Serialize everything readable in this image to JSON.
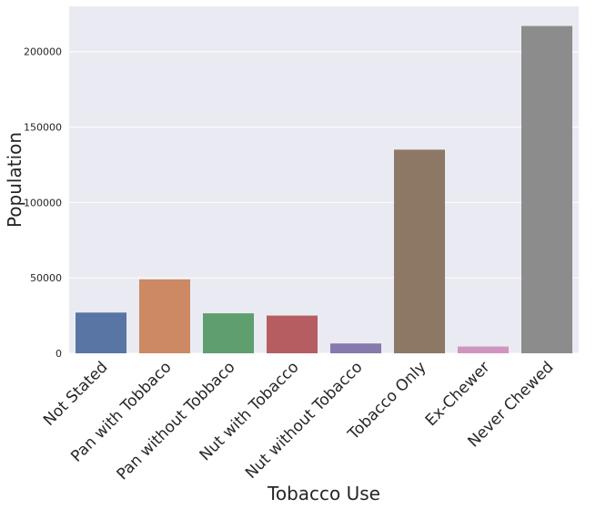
{
  "chart_data": {
    "type": "bar",
    "title": "",
    "xlabel": "Tobacco Use",
    "ylabel": "Population",
    "categories": [
      "Not Stated",
      "Pan with Tobbaco",
      "Pan without Tobbaco",
      "Nut with Tobacco",
      "Nut without Tobacco",
      "Tobacco Only",
      "Ex-Chewer",
      "Never Chewed"
    ],
    "values": [
      27000,
      49000,
      26500,
      25000,
      6500,
      135000,
      4500,
      217000
    ],
    "colors": [
      "#5875a4",
      "#cc8963",
      "#5f9e6e",
      "#b55d60",
      "#857aab",
      "#8d7866",
      "#d095bf",
      "#8c8c8c"
    ],
    "ylim": [
      0,
      230000
    ],
    "yticks": [
      0,
      50000,
      100000,
      150000,
      200000
    ],
    "ytick_labels": [
      "0",
      "50000",
      "100000",
      "150000",
      "200000"
    ],
    "grid": true,
    "background": "#eaeaf2",
    "grid_color": "#ffffff"
  }
}
